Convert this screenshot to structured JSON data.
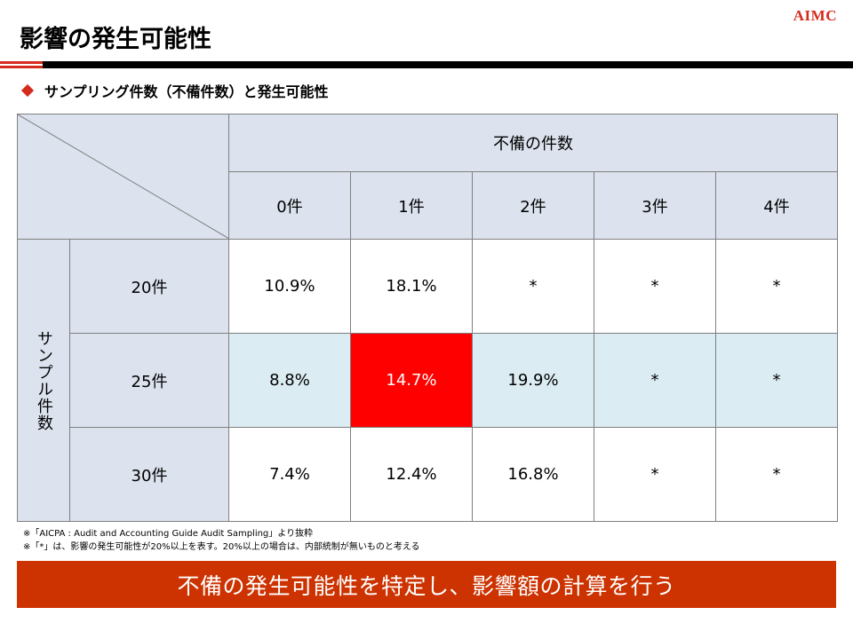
{
  "logo": "AIMC",
  "title": "影響の発生可能性",
  "section": {
    "heading": "サンプリング件数（不備件数）と発生可能性"
  },
  "table": {
    "column_group_label": "不備の件数",
    "row_group_label": "サンプル件数",
    "columns": [
      "0件",
      "1件",
      "2件",
      "3件",
      "4件"
    ],
    "rows": [
      {
        "label": "20件",
        "values": [
          "10.9%",
          "18.1%",
          "*",
          "*",
          "*"
        ]
      },
      {
        "label": "25件",
        "values": [
          "8.8%",
          "14.7%",
          "19.9%",
          "*",
          "*"
        ]
      },
      {
        "label": "30件",
        "values": [
          "7.4%",
          "12.4%",
          "16.8%",
          "*",
          "*"
        ]
      }
    ],
    "highlight_color": "#ff0000",
    "header_color": "#dce3ee",
    "highlight_row_color": "#dbecf2"
  },
  "footnotes": [
    "※「AICPA : Audit and Accounting Guide Audit Sampling」より抜粋",
    "※「*」は、影響の発生可能性が20%以上を表す。20%以上の場合は、内部統制が無いものと考える"
  ],
  "banner": "不備の発生可能性を特定し、影響額の計算を行う"
}
